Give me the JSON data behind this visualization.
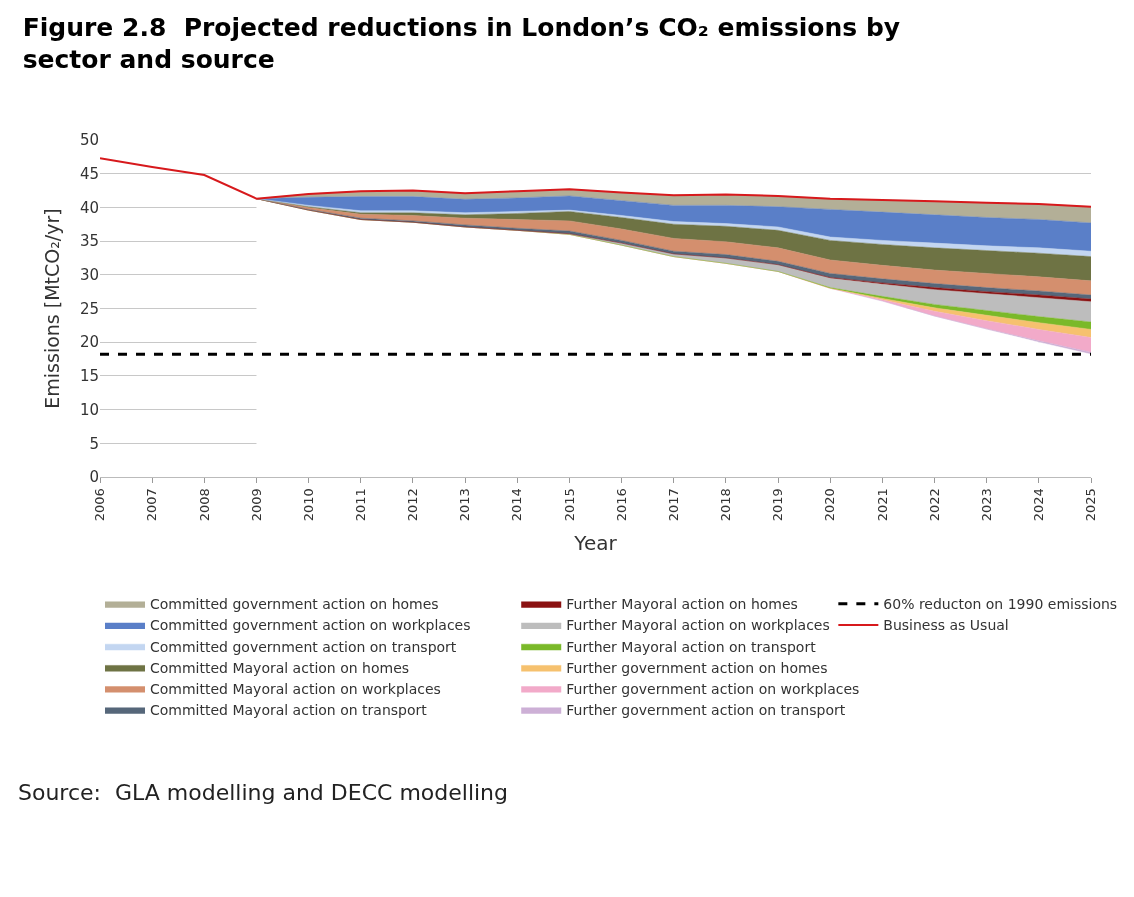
{
  "chart_data": {
    "type": "area",
    "stacked": true,
    "title": "Figure 2.8  Projected reductions in London’s CO₂ emissions by sector and source",
    "xlabel": "Year",
    "ylabel": "Emissions [MtCO₂/yr]",
    "x": [
      2006,
      2007,
      2008,
      2009,
      2010,
      2011,
      2012,
      2013,
      2014,
      2015,
      2016,
      2017,
      2018,
      2019,
      2020,
      2021,
      2022,
      2023,
      2024,
      2025
    ],
    "xlim": [
      2006,
      2025
    ],
    "xticks": [
      2006,
      2007,
      2008,
      2009,
      2010,
      2011,
      2012,
      2013,
      2014,
      2015,
      2016,
      2017,
      2018,
      2019,
      2020,
      2021,
      2022,
      2023,
      2024,
      2025
    ],
    "ylim": [
      0,
      50
    ],
    "yticks": [
      0,
      5,
      10,
      15,
      20,
      25,
      30,
      35,
      40,
      45,
      50
    ],
    "grid": "y",
    "legend": "bottom",
    "series": [
      {
        "color": "#ffffff",
        "values": [
          null,
          null,
          null,
          41.3,
          39.6,
          38.2,
          37.8,
          37.1,
          36.6,
          36.0,
          34.4,
          32.7,
          31.7,
          30.5,
          28.0,
          26.1,
          23.8,
          21.9,
          20.0,
          18.2
        ]
      },
      {
        "name": "Further government action on transport",
        "color": "#cdb0d6",
        "values": [
          null,
          null,
          null,
          0,
          0,
          0,
          0,
          0,
          0,
          0,
          0,
          0,
          0,
          0,
          0,
          0,
          0.1,
          0.1,
          0.2,
          0.3
        ]
      },
      {
        "name": "Further government action on workplaces",
        "color": "#f2aac9",
        "values": [
          null,
          null,
          null,
          0,
          0,
          0,
          0,
          0,
          0,
          0,
          0,
          0,
          0,
          0,
          0,
          0.2,
          0.7,
          1.2,
          1.7,
          2.2
        ]
      },
      {
        "name": "Further government action on homes",
        "color": "#f6c16e",
        "values": [
          null,
          null,
          null,
          0,
          0,
          0,
          0,
          0,
          0,
          0,
          0,
          0,
          0,
          0,
          0,
          0.2,
          0.5,
          0.8,
          1.0,
          1.2
        ]
      },
      {
        "name": "Further Mayoral action on transport",
        "color": "#7ab929",
        "values": [
          null,
          null,
          null,
          0,
          0,
          0,
          0,
          0,
          0,
          0,
          0,
          0,
          0,
          0,
          0.1,
          0.3,
          0.5,
          0.7,
          0.9,
          1.1
        ]
      },
      {
        "name": "Further Mayoral action on workplaces",
        "color": "#bdbdbd",
        "values": [
          null,
          null,
          null,
          0,
          0,
          0,
          0,
          0,
          0,
          0.1,
          0.3,
          0.4,
          0.8,
          1.0,
          1.4,
          1.8,
          2.2,
          2.5,
          2.8,
          3.0
        ]
      },
      {
        "name": "Further Mayoral action on homes",
        "color": "#8b1212",
        "values": [
          null,
          null,
          null,
          0,
          0,
          0,
          0,
          0,
          0,
          0,
          0,
          0,
          0,
          0,
          0.1,
          0.2,
          0.3,
          0.3,
          0.4,
          0.4
        ]
      },
      {
        "name": "Committed Mayoral action on transport",
        "color": "#56677a",
        "values": [
          null,
          null,
          null,
          0,
          0.1,
          0.2,
          0.2,
          0.3,
          0.3,
          0.4,
          0.4,
          0.4,
          0.5,
          0.5,
          0.6,
          0.6,
          0.6,
          0.6,
          0.6,
          0.6
        ]
      },
      {
        "name": "Committed Mayoral action on workplaces",
        "color": "#d48f6e",
        "values": [
          null,
          null,
          null,
          0,
          0.3,
          0.6,
          0.8,
          1.0,
          1.3,
          1.5,
          1.7,
          1.9,
          1.9,
          2.0,
          2.0,
          2.0,
          2.0,
          2.1,
          2.1,
          2.1
        ]
      },
      {
        "name": "Committed Mayoral action on homes",
        "color": "#6e7344",
        "values": [
          null,
          null,
          null,
          0,
          0.1,
          0.2,
          0.4,
          0.5,
          0.9,
          1.4,
          1.7,
          2.1,
          2.3,
          2.6,
          2.9,
          3.1,
          3.3,
          3.4,
          3.5,
          3.6
        ]
      },
      {
        "name": "Committed government action on transport",
        "color": "#c3d6f1",
        "values": [
          null,
          null,
          null,
          0,
          0.2,
          0.3,
          0.3,
          0.3,
          0.3,
          0.2,
          0.3,
          0.4,
          0.4,
          0.5,
          0.5,
          0.6,
          0.7,
          0.7,
          0.8,
          0.8
        ]
      },
      {
        "name": "Committed government action on workplaces",
        "color": "#5a7fc8",
        "values": [
          null,
          null,
          null,
          0,
          1.2,
          2.1,
          2.1,
          2.0,
          2.0,
          2.1,
          2.2,
          2.4,
          2.7,
          3.0,
          4.1,
          4.2,
          4.2,
          4.2,
          4.2,
          4.2
        ]
      },
      {
        "name": "Committed government action on homes",
        "color": "#b3af97",
        "values": [
          null,
          null,
          null,
          0,
          0.5,
          0.8,
          0.9,
          0.9,
          1.0,
          1.0,
          1.2,
          1.5,
          1.6,
          1.6,
          1.6,
          1.8,
          2.0,
          2.2,
          2.3,
          2.4
        ]
      },
      {
        "name": "Business as Usual",
        "type": "line",
        "color": "#d7191c",
        "values": [
          47.3,
          46.0,
          44.8,
          41.3,
          42.0,
          42.4,
          42.5,
          42.1,
          42.4,
          42.7,
          42.2,
          41.8,
          41.9,
          41.7,
          41.3,
          41.1,
          40.9,
          40.7,
          40.5,
          40.1
        ]
      }
    ],
    "ref_lines": [
      {
        "axis": "y",
        "value": 18.2,
        "label": "60% reducton on 1990 emissions",
        "color": "#000000",
        "line_style": "dashed"
      }
    ],
    "annotations": [
      "Source:  GLA modelling and DECC modelling"
    ]
  }
}
